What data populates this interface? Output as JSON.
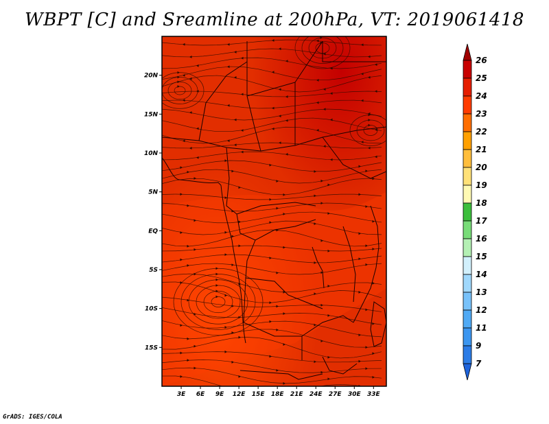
{
  "title": "WBPT [C] and Sreamline at 200hPa, VT: 2019061418",
  "footer": "GrADS: IGES/COLA",
  "map": {
    "field": "WBPT [C]",
    "level": "200hPa",
    "valid_time": "2019061418",
    "lon_labels": [
      "3E",
      "6E",
      "9E",
      "12E",
      "15E",
      "18E",
      "21E",
      "24E",
      "27E",
      "30E",
      "33E"
    ],
    "lat_labels": [
      "20N",
      "15N",
      "10N",
      "5N",
      "EQ",
      "5S",
      "10S",
      "15S"
    ],
    "lon_range": [
      0,
      35
    ],
    "lat_range": [
      -20,
      25
    ]
  },
  "colorbar": {
    "labels": [
      "7",
      "9",
      "11",
      "12",
      "13",
      "14",
      "15",
      "16",
      "17",
      "18",
      "19",
      "20",
      "21",
      "22",
      "23",
      "24",
      "25",
      "26"
    ],
    "colors": [
      "#1e64dc",
      "#2c7ce6",
      "#3c96f0",
      "#50aaf5",
      "#78c2fa",
      "#a0d8fc",
      "#d2f0fc",
      "#b4f0b4",
      "#78dc78",
      "#3cbe3c",
      "#fffab4",
      "#ffe178",
      "#ffbe3c",
      "#ffa000",
      "#ff6e00",
      "#ff3c00",
      "#e61e00",
      "#c80000",
      "#a00000"
    ]
  }
}
